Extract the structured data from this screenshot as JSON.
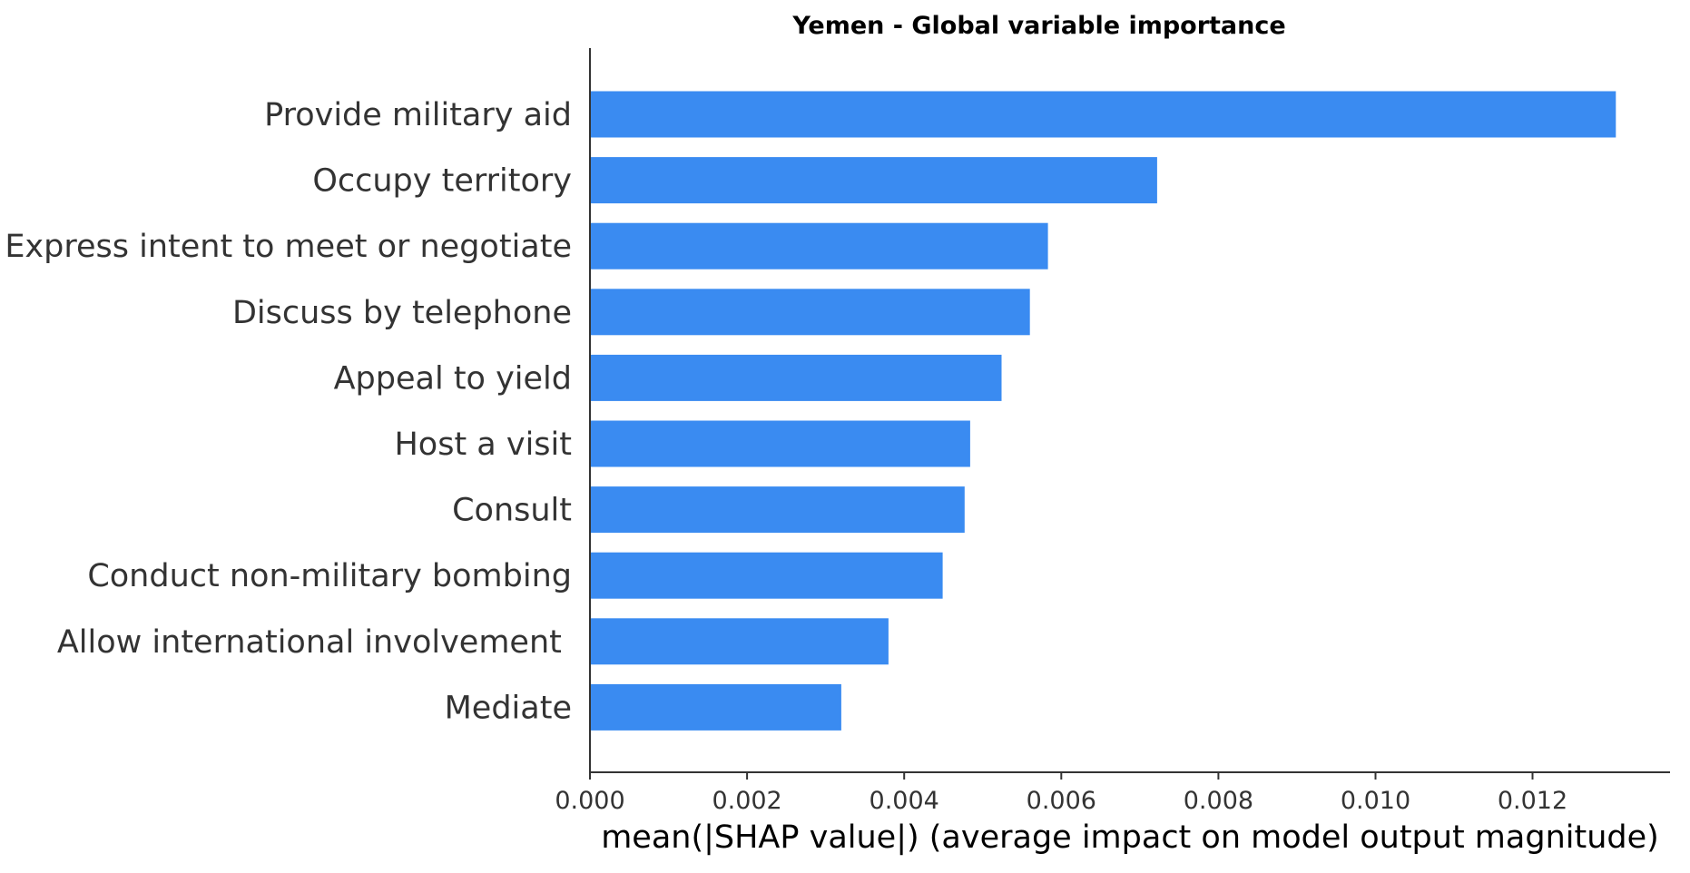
{
  "chart_data": {
    "type": "bar",
    "orientation": "horizontal",
    "title": "Yemen - Global variable importance",
    "xlabel": "mean(|SHAP value|) (average impact on model output magnitude)",
    "ylabel": "",
    "categories": [
      "Provide military aid",
      "Occupy territory",
      "Express intent to meet or negotiate",
      "Discuss by telephone",
      "Appeal to yield",
      "Host a visit",
      "Consult",
      "Conduct non-military bombing",
      "Allow international involvement ",
      "Mediate"
    ],
    "values": [
      0.01306,
      0.00722,
      0.00583,
      0.0056,
      0.00524,
      0.00484,
      0.00477,
      0.00449,
      0.0038,
      0.0032
    ],
    "xlim": [
      0,
      0.01375
    ],
    "xticks": [
      0,
      0.002,
      0.004,
      0.006,
      0.008,
      0.01,
      0.012
    ],
    "xtick_labels": [
      "0.000",
      "0.002",
      "0.004",
      "0.006",
      "0.008",
      "0.010",
      "0.012"
    ],
    "bar_color": "#3a8bf1",
    "grid": false,
    "legend": "none"
  }
}
